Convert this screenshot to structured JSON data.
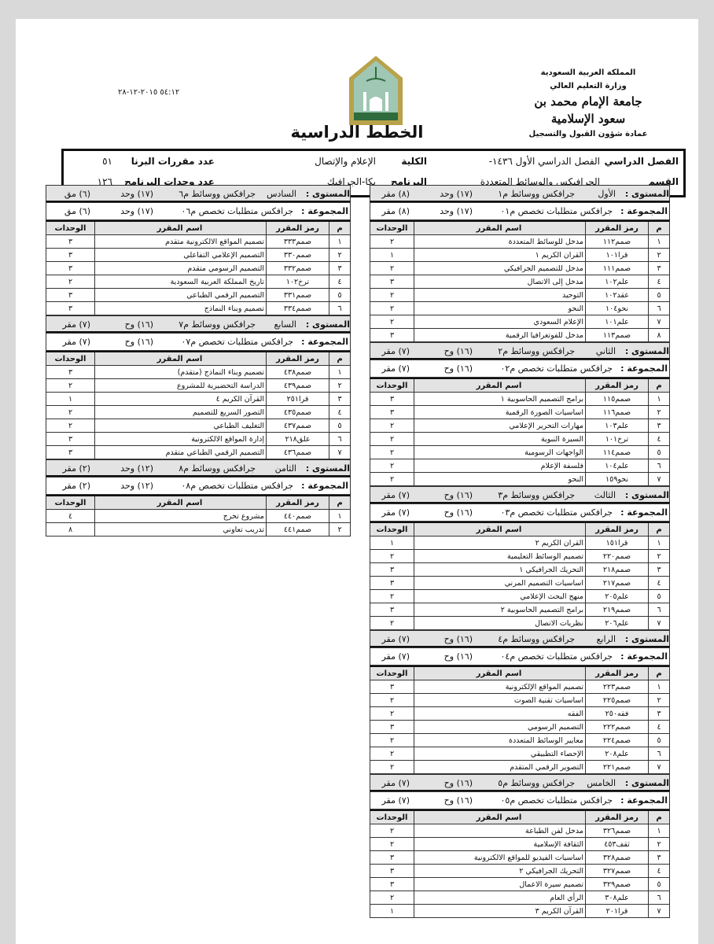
{
  "header": {
    "university_lines": [
      "المملكة العربية السعودية",
      "وزارة التعليم العالي",
      "جامعة الإمام محمد بن سعود الإسلامية",
      "عمادة شؤون القبول والتسجيل"
    ],
    "datetime": "٥٤:١٢ ٢٠١٥-١٢-٢٨",
    "title": "الخطط الدراسية",
    "logo_colors": {
      "frame": "#b8a24a",
      "inner": "#9fc7b4",
      "ground": "#2e6b3d"
    }
  },
  "info": {
    "semester_label": "الفصل الدراسي",
    "semester_value": "الفصل الدراسي الأول ١٤٣٦-",
    "college_label": "الكلية",
    "college_value": "الإعلام والإتصال",
    "courses_count_label": "عدد مقررات البرنا",
    "courses_count_value": "٥١",
    "department_label": "القسم",
    "department_value": "الجرافيكس والوسائط المتعددة",
    "program_label": "البرنامج",
    "program_value": "بكا-الجرافيك",
    "units_label": "عدد وحدات البرنامج",
    "units_value": "١٢٦"
  },
  "labels": {
    "level": "المستوى :",
    "group": "المجموعة :",
    "col_num": "م",
    "col_code": "رمز المقرر",
    "col_name": "اسم المقرر",
    "col_units": "الوحدات"
  },
  "levels": [
    {
      "name": "الأول",
      "plan": "جرافكس ووسائط م١",
      "units": "(١٧) وحد",
      "count": "(٨) مقر",
      "group": "جرافكس متطلبات تخصص م٠١",
      "courses": [
        [
          "١",
          "صمم١١٢",
          "مدخل للوسائط المتعددة",
          "٢"
        ],
        [
          "٢",
          "قرا١٠١",
          "القران الكريم ١",
          "١"
        ],
        [
          "٣",
          "صمم١١١",
          "مدخل للتصميم الجرافيكي",
          "٢"
        ],
        [
          "٤",
          "علم١٠٢",
          "مدخل إلى الاتصال",
          "٣"
        ],
        [
          "٥",
          "عقد١٠٢",
          "التوحيد",
          "٢"
        ],
        [
          "٦",
          "نحو١٠٤",
          "النحو",
          "٢"
        ],
        [
          "٧",
          "علم١٠١",
          "الإعلام السعودي",
          "٢"
        ],
        [
          "٨",
          "صمم١١٣",
          "مدخل للفوتغرافيا الرقمية",
          "٣"
        ]
      ]
    },
    {
      "name": "الثاني",
      "plan": "جرافكس ووسائط م٢",
      "units": "(١٦) وح",
      "count": "(٧) مقر",
      "group": "جرافكس متطلبات تخصص م٠٢",
      "courses": [
        [
          "١",
          "صمم١١٥",
          "برامج التصميم الحاسوبية ١",
          "٣"
        ],
        [
          "٢",
          "صمم١١٦",
          "اساسيات الصورة الرقمية",
          "٣"
        ],
        [
          "٣",
          "علم١٠٣",
          "مهارات التحرير الإعلامي",
          "٢"
        ],
        [
          "٤",
          "ترخ١٠١",
          "السيرة النبوية",
          "٢"
        ],
        [
          "٥",
          "صمم١١٤",
          "الواجهات الرسومية",
          "٢"
        ],
        [
          "٦",
          "علم١٠٤",
          "فلسفة الإعلام",
          "٢"
        ],
        [
          "٧",
          "نحو١٥٩",
          "النحو",
          "٢"
        ]
      ]
    },
    {
      "name": "الثالث",
      "plan": "جرافكس ووسائط م٣",
      "units": "(١٦) وح",
      "count": "(٧) مقر",
      "group": "جرافكس متطلبات تخصص م٠٣",
      "courses": [
        [
          "١",
          "قرا١٥١",
          "القران الكريم ٢",
          "١"
        ],
        [
          "٢",
          "صمم٢٢٠",
          "تصميم الوسائط التعليمية",
          "٢"
        ],
        [
          "٣",
          "صمم٢١٨",
          "التحريك الجرافيكي ١",
          "٣"
        ],
        [
          "٤",
          "صمم٢١٧",
          "اساسيات التصميم المرني",
          "٣"
        ],
        [
          "٥",
          "علم٢٠٥",
          "منهج البحث الإعلامي",
          "٢"
        ],
        [
          "٦",
          "صمم٢١٩",
          "برامج التصميم الحاسوبية ٢",
          "٣"
        ],
        [
          "٧",
          "علم٢٠٦",
          "نظريات الاتصال",
          "٢"
        ]
      ]
    },
    {
      "name": "الرابع",
      "plan": "جرافكس ووسائط م٤",
      "units": "(١٦) وح",
      "count": "(٧) مقر",
      "group": "جرافكس متطلبات تخصص م٠٤",
      "courses": [
        [
          "١",
          "صمم٢٢٣",
          "تصميم المواقع الإلكترونية",
          "٣"
        ],
        [
          "٢",
          "صمم٢٢٥",
          "اساسيات تقنية الصوت",
          "٢"
        ],
        [
          "٣",
          "فقه٢٥٠",
          "الفقه",
          "٢"
        ],
        [
          "٤",
          "صمم٢٢٢",
          "التصميم الرسومي",
          "٣"
        ],
        [
          "٥",
          "صمم٢٢٤",
          "معايير الوسائط المتعددة",
          "٢"
        ],
        [
          "٦",
          "علم٢٠٨",
          "الإحصاء التطبيقي",
          "٢"
        ],
        [
          "٧",
          "صمم٢٢١",
          "التصوير الرقمي المتقدم",
          "٢"
        ]
      ]
    },
    {
      "name": "الخامس",
      "plan": "جرافكس ووسائط م٥",
      "units": "(١٦) وح",
      "count": "(٧) مقر",
      "group": "جرافكس متطلبات تخصص م٠٥",
      "courses": [
        [
          "١",
          "صمم٣٢٦",
          "مدخل لفن الطباعة",
          "٢"
        ],
        [
          "٢",
          "ثقف٤٥٣",
          "الثقافة الإسلامية",
          "٢"
        ],
        [
          "٣",
          "صمم٣٢٨",
          "اساسيات الفيديو للمواقع الالكترونية",
          "٣"
        ],
        [
          "٤",
          "صمم٣٢٧",
          "التحريك الجرافيكي ٢",
          "٣"
        ],
        [
          "٥",
          "صمم٣٢٩",
          "تصميم سيرة الاعمال",
          "٣"
        ],
        [
          "٦",
          "علم٣٠٨",
          "الرأي العام",
          "٢"
        ],
        [
          "٧",
          "قرا٢٠١",
          "القرآن الكريم ٣",
          "١"
        ]
      ]
    },
    {
      "name": "السادس",
      "plan": "جرافكس ووسائط م٦",
      "units": "(١٧) وحد",
      "count": "(٦) مق",
      "group": "جرافكس متطلبات تخصص م٠٦",
      "courses": [
        [
          "١",
          "صمم٣٣٣",
          "تصميم المواقع الالكترونية متقدم",
          "٣"
        ],
        [
          "٢",
          "صمم٣٣٠",
          "التصميم الإعلامي التفاعلي",
          "٣"
        ],
        [
          "٣",
          "صمم٣٣٢",
          "التصميم الرسومي متقدم",
          "٣"
        ],
        [
          "٤",
          "ترخ١٠٢",
          "تاريخ المملكة العربية السعودية",
          "٢"
        ],
        [
          "٥",
          "صمم٣٣١",
          "التصميم الرقمي الطباعي",
          "٣"
        ],
        [
          "٦",
          "صمم٣٣٤",
          "تصميم وبناء النماذج",
          "٣"
        ]
      ]
    },
    {
      "name": "السابع",
      "plan": "جرافكس ووسائط م٧",
      "units": "(١٦) وح",
      "count": "(٧) مقر",
      "group": "جرافكس متطلبات تخصص م٠٧",
      "courses": [
        [
          "١",
          "صمم٤٣٨",
          "تصميم وبناء النماذج (متقدم)",
          "٣"
        ],
        [
          "٢",
          "صمم٤٣٩",
          "الدراسة التحضيرية للمشروع",
          "٢"
        ],
        [
          "٣",
          "قرا٢٥١",
          "القرآن الكريم ٤",
          "١"
        ],
        [
          "٤",
          "صمم٤٣٥",
          "التصور السريع للتصميم",
          "٢"
        ],
        [
          "٥",
          "صمم٤٣٧",
          "التغليف الطباعي",
          "٢"
        ],
        [
          "٦",
          "علق٢١٨",
          "إدارة المواقع الالكترونية",
          "٣"
        ],
        [
          "٧",
          "صمم٤٣٦",
          "التصميم الرقمي الطباعي متقدم",
          "٣"
        ]
      ]
    },
    {
      "name": "الثامن",
      "plan": "جرافكس ووسائط م٨",
      "units": "(١٢) وحد",
      "count": "(٢) مقر",
      "group": "جرافكس متطلبات تخصص م٠٨",
      "courses": [
        [
          "١",
          "صمم٤٤٠",
          "مشروع تخرج",
          "٤"
        ],
        [
          "٢",
          "صمم٤٤١",
          "تدريب تعاوني",
          "٨"
        ]
      ]
    }
  ]
}
